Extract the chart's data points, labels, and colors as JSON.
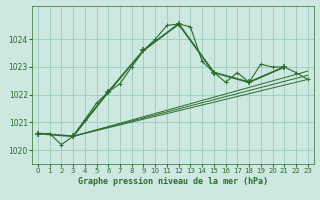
{
  "title": "Graphe pression niveau de la mer (hPa)",
  "bg_color": "#cce8e0",
  "grid_color": "#99ccbb",
  "line_color": "#2d6b2d",
  "xlim": [
    -0.5,
    23.5
  ],
  "ylim": [
    1019.5,
    1025.2
  ],
  "xticks": [
    0,
    1,
    2,
    3,
    4,
    5,
    6,
    7,
    8,
    9,
    10,
    11,
    12,
    13,
    14,
    15,
    16,
    17,
    18,
    19,
    20,
    21,
    22,
    23
  ],
  "yticks": [
    1020,
    1021,
    1022,
    1023,
    1024
  ],
  "series1_x": [
    0,
    1,
    2,
    3,
    4,
    5,
    6,
    7,
    8,
    9,
    10,
    11,
    12,
    13,
    14,
    15,
    16,
    17,
    18,
    19,
    20,
    21,
    22,
    23
  ],
  "series1_y": [
    1020.6,
    1020.6,
    1020.2,
    1020.5,
    1021.1,
    1021.7,
    1022.1,
    1022.4,
    1023.0,
    1023.6,
    1024.0,
    1024.5,
    1024.55,
    1024.45,
    1023.2,
    1022.8,
    1022.45,
    1022.8,
    1022.45,
    1023.1,
    1023.0,
    1023.0,
    1022.8,
    1022.55
  ],
  "series2_x": [
    0,
    3,
    6,
    9,
    12,
    15,
    18,
    21
  ],
  "series2_y": [
    1020.6,
    1020.5,
    1022.1,
    1023.6,
    1024.55,
    1022.8,
    1022.45,
    1023.0
  ],
  "tline1_x": [
    3,
    23
  ],
  "tline1_y": [
    1020.5,
    1022.55
  ],
  "tline2_x": [
    3,
    23
  ],
  "tline2_y": [
    1020.5,
    1022.7
  ],
  "tline3_x": [
    3,
    23
  ],
  "tline3_y": [
    1020.5,
    1022.85
  ]
}
